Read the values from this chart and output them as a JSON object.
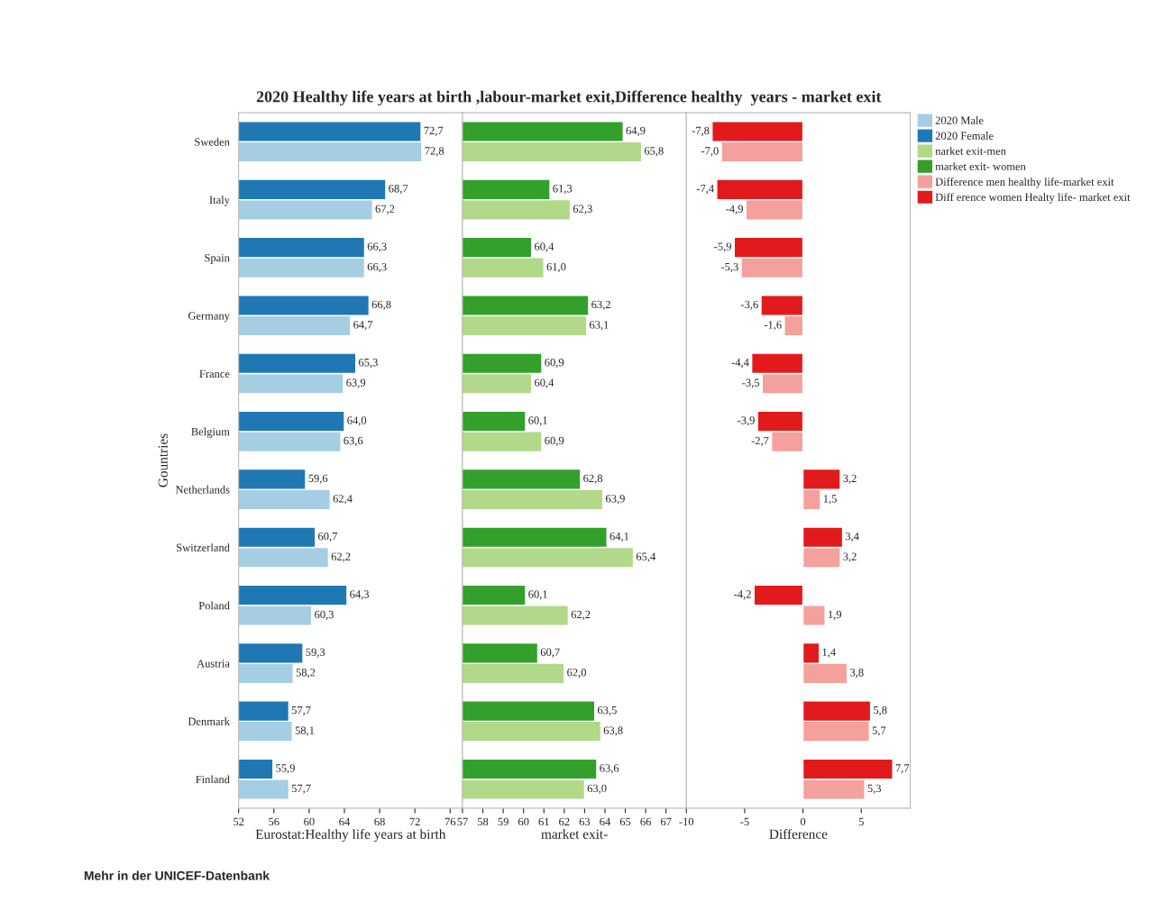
{
  "chart_data": [
    {
      "type": "bar",
      "orientation": "horizontal",
      "title": "2020 Healthy life years at birth ,labour-market exit,Difference healthy  years - market exit",
      "xlabel": "Eurostat:Healthy life years at birth",
      "ylabel": "Gountries",
      "categories": [
        "Sweden",
        "Italy",
        "Spain",
        "Germany",
        "France",
        "Belgium",
        "Netherlands",
        "Switzerland",
        "Poland",
        "Austria",
        "Denmark",
        "Finland"
      ],
      "xlim": [
        52,
        77.4
      ],
      "xticks": [
        52,
        56,
        60,
        64,
        68,
        72,
        76
      ],
      "legend": "top right",
      "tick_labels": "xy",
      "annotations": [
        "Mehr in der UNICEF-Datenbank"
      ],
      "series": [
        {
          "name": "2020 Male",
          "color": "#a6cee3",
          "values": [
            72.8,
            67.2,
            66.3,
            64.7,
            63.9,
            63.6,
            62.4,
            62.2,
            60.3,
            58.2,
            58.1,
            57.7
          ],
          "value_labels": [
            "72,8",
            "67,2",
            "66,3",
            "64,7",
            "63,9",
            "63,6",
            "62,4",
            "62,2",
            "60,3",
            "58,2",
            "58,1",
            "57,7"
          ]
        },
        {
          "name": "2020 Female",
          "color": "#1f78b4",
          "values": [
            72.7,
            68.7,
            66.3,
            66.8,
            65.3,
            64.0,
            59.6,
            60.7,
            64.3,
            59.3,
            57.7,
            55.9
          ],
          "value_labels": [
            "72,7",
            "68,7",
            "66,3",
            "66,8",
            "65,3",
            "64,0",
            "59,6",
            "60,7",
            "64,3",
            "59,3",
            "57,7",
            "55,9"
          ]
        }
      ]
    },
    {
      "type": "bar",
      "orientation": "horizontal",
      "xlabel": "market exit-",
      "categories": [
        null,
        null,
        null,
        null,
        null,
        null,
        null,
        null,
        null,
        null,
        null,
        null
      ],
      "xlim": [
        57,
        68
      ],
      "xticks": [
        57,
        58,
        59,
        60,
        61,
        62,
        63,
        64,
        65,
        66,
        67
      ],
      "legend": "top right",
      "tick_labels": "x",
      "series": [
        {
          "name": "narket exit-men",
          "color": "#b2d88a",
          "values": [
            65.8,
            62.3,
            61.0,
            63.1,
            60.4,
            60.9,
            63.9,
            65.4,
            62.2,
            62.0,
            63.8,
            63.0
          ],
          "value_labels": [
            "65,8",
            "62,3",
            "61,0",
            "63,1",
            "60,4",
            "60,9",
            "63,9",
            "65,4",
            "62,2",
            "62,0",
            "63,8",
            "63,0"
          ]
        },
        {
          "name": "market exit- women",
          "color": "#33a02c",
          "values": [
            64.9,
            61.3,
            60.4,
            63.2,
            60.9,
            60.1,
            62.8,
            64.1,
            60.1,
            60.7,
            63.5,
            63.6
          ],
          "value_labels": [
            "64,9",
            "61,3",
            "60,4",
            "63,2",
            "60,9",
            "60,1",
            "62,8",
            "64,1",
            "60,1",
            "60,7",
            "63,5",
            "63,6"
          ]
        }
      ]
    },
    {
      "type": "bar",
      "orientation": "horizontal",
      "xlabel": "Difference",
      "categories": [
        null,
        null,
        null,
        null,
        null,
        null,
        null,
        null,
        null,
        null,
        null,
        null
      ],
      "xlim": [
        -10,
        9.2
      ],
      "xticks": [
        {
          "value": -10,
          "label": "-10"
        },
        {
          "value": -5,
          "label": "-5"
        },
        0,
        5
      ],
      "legend": "top right",
      "tick_labels": "x",
      "series": [
        {
          "name": "Difference men healthy life-market exit",
          "color": "#f4a09c",
          "values": [
            -7.0,
            -4.9,
            -5.3,
            -1.6,
            -3.5,
            -2.7,
            1.5,
            3.2,
            1.9,
            3.8,
            5.7,
            5.3
          ],
          "value_labels": [
            "-7,0",
            "-4,9",
            "-5,3",
            "-1,6",
            "-3,5",
            "-2,7",
            "1,5",
            "3,2",
            "1,9",
            "3,8",
            "5,7",
            "5,3"
          ]
        },
        {
          "name": "Diff erence women Healty life- market exit",
          "color": "#e31a1c",
          "values": [
            -7.8,
            -7.4,
            -5.9,
            -3.6,
            -4.4,
            -3.9,
            3.2,
            3.4,
            -4.2,
            1.4,
            5.8,
            7.7
          ],
          "value_labels": [
            "-7,8",
            "-7,4",
            "-5,9",
            "-3,6",
            "-4,4",
            "-3,9",
            "3,2",
            "3,4",
            "-4,2",
            "1,4",
            "5,8",
            "7,7"
          ]
        }
      ]
    }
  ]
}
